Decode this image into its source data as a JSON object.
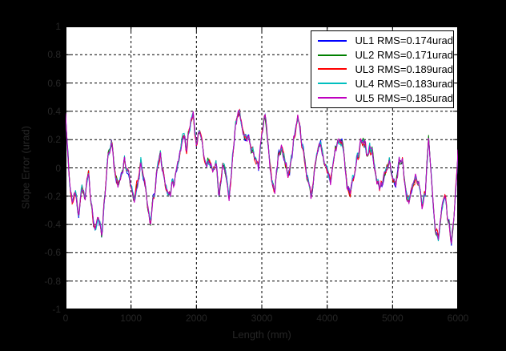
{
  "figure": {
    "background": "#000000",
    "plot_background": "#ffffff",
    "grid_color": "#000000",
    "tick_label_color": "#262626",
    "axis_label_color": "#262626"
  },
  "axes": {
    "x": {
      "label": "Length (mm)",
      "ticks": [
        "0",
        "1000",
        "2000",
        "3000",
        "4000",
        "5000",
        "6000"
      ]
    },
    "y": {
      "label": "Slope Error (urad)",
      "ticks": [
        "1",
        "0.8",
        "0.6",
        "0.4",
        "0.2",
        "0",
        "-0.2",
        "-0.4",
        "-0.6",
        "-0.8",
        "-1"
      ]
    }
  },
  "legend": {
    "position": "top-right",
    "items": [
      {
        "label": "UL1 RMS=0.174urad",
        "color": "#0000FF"
      },
      {
        "label": "UL2 RMS=0.171urad",
        "color": "#008000"
      },
      {
        "label": "UL3 RMS=0.189urad",
        "color": "#FF0000"
      },
      {
        "label": "UL4 RMS=0.183urad",
        "color": "#00BFBF"
      },
      {
        "label": "UL5 RMS=0.185urad",
        "color": "#BF00BF"
      }
    ]
  },
  "chart_data": {
    "type": "line",
    "title": "",
    "xlabel": "Length (mm)",
    "ylabel": "Slope Error (urad)",
    "xlim": [
      0,
      6000
    ],
    "ylim": [
      -1,
      1
    ],
    "grid": true,
    "grid_style": "dashed",
    "legend_position": "top-right",
    "x_start": 0,
    "x_step": 50,
    "base_values": [
      0.37,
      -0.05,
      -0.25,
      -0.18,
      -0.32,
      -0.12,
      -0.22,
      -0.02,
      -0.3,
      -0.44,
      -0.36,
      -0.46,
      -0.2,
      0.1,
      0.17,
      -0.02,
      -0.12,
      -0.06,
      0.06,
      -0.04,
      -0.14,
      -0.22,
      -0.1,
      0.04,
      -0.08,
      -0.28,
      -0.38,
      -0.2,
      -0.02,
      0.1,
      -0.06,
      -0.16,
      -0.18,
      -0.1,
      -0.02,
      0.12,
      0.26,
      0.1,
      0.3,
      0.4,
      0.18,
      0.28,
      0.12,
      0.02,
      0.08,
      -0.02,
      0.02,
      -0.18,
      0.04,
      -0.06,
      -0.22,
      0.08,
      0.28,
      0.41,
      0.28,
      0.18,
      0.24,
      0.12,
      0.06,
      0.02,
      0.27,
      0.36,
      0.15,
      -0.1,
      -0.14,
      0.1,
      0.13,
      0.04,
      -0.06,
      0.06,
      0.22,
      0.36,
      0.22,
      0.08,
      -0.08,
      -0.2,
      -0.04,
      0.12,
      0.16,
      0.04,
      0,
      -0.1,
      0.08,
      0.18,
      0.22,
      0.12,
      -0.1,
      -0.2,
      -0.06,
      0.06,
      0.16,
      0.22,
      0.12,
      0.16,
      0.08,
      -0.04,
      -0.16,
      -0.1,
      -0.02,
      0.04,
      -0.06,
      -0.12,
      0.04,
      0.08,
      -0.18,
      -0.24,
      -0.1,
      -0.06,
      -0.12,
      -0.26,
      -0.16,
      0.22,
      -0.08,
      -0.42,
      -0.52,
      -0.3,
      -0.18,
      -0.38,
      -0.5,
      -0.28,
      0.1
    ],
    "texture": {
      "seed": 11,
      "amplitude": 0.04,
      "subdivisions": 4
    },
    "series": [
      {
        "name": "UL1",
        "rms_urad": 0.174,
        "label": "UL1 RMS=0.174urad",
        "color": "#0000FF",
        "jitter_seed": 1,
        "jitter_amplitude": 0.028
      },
      {
        "name": "UL2",
        "rms_urad": 0.171,
        "label": "UL2 RMS=0.171urad",
        "color": "#008000",
        "jitter_seed": 2,
        "jitter_amplitude": 0.026
      },
      {
        "name": "UL3",
        "rms_urad": 0.189,
        "label": "UL3 RMS=0.189urad",
        "color": "#FF0000",
        "jitter_seed": 3,
        "jitter_amplitude": 0.032
      },
      {
        "name": "UL4",
        "rms_urad": 0.183,
        "label": "UL4 RMS=0.183urad",
        "color": "#00BFBF",
        "jitter_seed": 4,
        "jitter_amplitude": 0.03
      },
      {
        "name": "UL5",
        "rms_urad": 0.185,
        "label": "UL5 RMS=0.185urad",
        "color": "#BF00BF",
        "jitter_seed": 5,
        "jitter_amplitude": 0.031
      }
    ]
  }
}
